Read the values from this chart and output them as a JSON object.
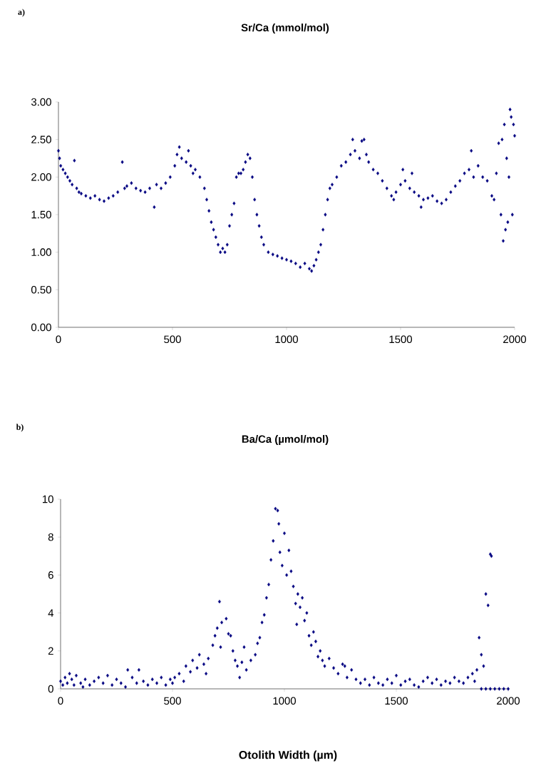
{
  "chart_data": [
    {
      "type": "scatter",
      "title": "Sr/Ca (mmol/mol)",
      "annotations": [
        "a)"
      ],
      "marker": "diamond",
      "xlim": [
        0,
        2000
      ],
      "ylim": [
        0,
        3
      ],
      "xticks": [
        0,
        500,
        1000,
        1500,
        2000
      ],
      "yticks": [
        {
          "value": 0,
          "label": "0.00"
        },
        {
          "value": 0.5,
          "label": "0.50"
        },
        {
          "value": 1,
          "label": "1.00"
        },
        {
          "value": 1.5,
          "label": "1.50"
        },
        {
          "value": 2,
          "label": "2.00"
        },
        {
          "value": 2.5,
          "label": "2.50"
        },
        {
          "value": 3,
          "label": "3.00"
        }
      ],
      "series": [
        {
          "color": "#000080",
          "x": [
            0,
            5,
            10,
            20,
            30,
            40,
            50,
            60,
            70,
            80,
            90,
            100,
            120,
            140,
            160,
            180,
            200,
            220,
            240,
            260,
            280,
            290,
            300,
            320,
            340,
            360,
            380,
            400,
            420,
            430,
            450,
            470,
            490,
            510,
            520,
            530,
            540,
            560,
            570,
            580,
            590,
            600,
            620,
            640,
            650,
            660,
            670,
            680,
            690,
            700,
            710,
            720,
            730,
            740,
            750,
            760,
            770,
            780,
            790,
            800,
            810,
            820,
            830,
            840,
            850,
            860,
            870,
            880,
            890,
            900,
            920,
            940,
            960,
            980,
            1000,
            1020,
            1040,
            1060,
            1080,
            1100,
            1110,
            1120,
            1130,
            1140,
            1150,
            1160,
            1170,
            1180,
            1190,
            1200,
            1220,
            1240,
            1260,
            1280,
            1290,
            1300,
            1320,
            1330,
            1340,
            1350,
            1360,
            1380,
            1400,
            1420,
            1440,
            1460,
            1470,
            1480,
            1500,
            1510,
            1520,
            1540,
            1550,
            1560,
            1580,
            1590,
            1600,
            1620,
            1640,
            1660,
            1680,
            1700,
            1720,
            1740,
            1760,
            1780,
            1800,
            1810,
            1820,
            1840,
            1860,
            1880,
            1900,
            1910,
            1920,
            1930,
            1940,
            1945,
            1950,
            1955,
            1960,
            1965,
            1970,
            1975,
            1980,
            1985,
            1990,
            1995,
            2000
          ],
          "values": [
            2.35,
            2.25,
            2.15,
            2.1,
            2.05,
            2.0,
            1.95,
            1.9,
            2.22,
            1.85,
            1.8,
            1.78,
            1.75,
            1.72,
            1.75,
            1.7,
            1.68,
            1.72,
            1.75,
            1.8,
            2.2,
            1.85,
            1.88,
            1.92,
            1.85,
            1.82,
            1.8,
            1.85,
            1.6,
            1.9,
            1.85,
            1.92,
            2.0,
            2.15,
            2.3,
            2.4,
            2.25,
            2.2,
            2.35,
            2.15,
            2.05,
            2.1,
            2.0,
            1.85,
            1.7,
            1.55,
            1.4,
            1.3,
            1.2,
            1.1,
            1.0,
            1.05,
            1.0,
            1.1,
            1.35,
            1.5,
            1.65,
            2.0,
            2.05,
            2.05,
            2.1,
            2.2,
            2.3,
            2.25,
            2.0,
            1.7,
            1.5,
            1.35,
            1.2,
            1.1,
            1.0,
            0.97,
            0.95,
            0.92,
            0.9,
            0.88,
            0.85,
            0.8,
            0.85,
            0.78,
            0.75,
            0.82,
            0.9,
            1.0,
            1.1,
            1.3,
            1.5,
            1.7,
            1.85,
            1.9,
            2.0,
            2.15,
            2.2,
            2.3,
            2.5,
            2.35,
            2.25,
            2.48,
            2.5,
            2.3,
            2.2,
            2.1,
            2.05,
            1.95,
            1.85,
            1.75,
            1.7,
            1.8,
            1.9,
            2.1,
            1.95,
            1.85,
            2.05,
            1.8,
            1.75,
            1.6,
            1.7,
            1.72,
            1.75,
            1.68,
            1.65,
            1.7,
            1.8,
            1.88,
            1.95,
            2.05,
            2.1,
            2.35,
            2.0,
            2.15,
            2.0,
            1.95,
            1.75,
            1.7,
            2.05,
            2.45,
            1.5,
            2.5,
            1.15,
            2.7,
            1.3,
            2.25,
            1.4,
            2.0,
            2.9,
            2.8,
            1.5,
            2.7,
            2.55
          ]
        }
      ]
    },
    {
      "type": "scatter",
      "title": "Ba/Ca (µmol/mol)",
      "xlabel": "Otolith Width (µm)",
      "annotations": [
        "b)"
      ],
      "marker": "diamond",
      "xlim": [
        0,
        2000
      ],
      "ylim": [
        0,
        10
      ],
      "xticks": [
        0,
        500,
        1000,
        1500,
        2000
      ],
      "yticks": [
        0,
        2,
        4,
        6,
        8,
        10
      ],
      "series": [
        {
          "color": "#000080",
          "x": [
            0,
            10,
            20,
            30,
            40,
            50,
            60,
            70,
            90,
            100,
            110,
            130,
            150,
            170,
            190,
            210,
            230,
            250,
            270,
            290,
            300,
            320,
            340,
            350,
            370,
            390,
            410,
            430,
            450,
            470,
            490,
            500,
            510,
            530,
            550,
            560,
            580,
            590,
            610,
            620,
            640,
            650,
            660,
            680,
            690,
            700,
            710,
            715,
            720,
            740,
            750,
            760,
            770,
            780,
            790,
            800,
            810,
            820,
            830,
            850,
            870,
            880,
            890,
            900,
            910,
            920,
            930,
            940,
            950,
            960,
            970,
            975,
            980,
            990,
            1000,
            1010,
            1020,
            1030,
            1040,
            1050,
            1055,
            1060,
            1070,
            1080,
            1090,
            1100,
            1110,
            1120,
            1130,
            1140,
            1150,
            1160,
            1170,
            1180,
            1200,
            1220,
            1240,
            1260,
            1270,
            1280,
            1300,
            1320,
            1340,
            1360,
            1380,
            1400,
            1420,
            1440,
            1460,
            1480,
            1500,
            1520,
            1540,
            1560,
            1580,
            1600,
            1620,
            1640,
            1660,
            1680,
            1700,
            1720,
            1740,
            1760,
            1780,
            1800,
            1820,
            1840,
            1850,
            1860,
            1870,
            1880,
            1890,
            1900,
            1910,
            1920,
            1925,
            1880,
            1900,
            1920,
            1940,
            1960,
            1980,
            2000
          ],
          "values": [
            0.4,
            0.2,
            0.6,
            0.3,
            0.8,
            0.5,
            0.2,
            0.7,
            0.3,
            0.1,
            0.5,
            0.2,
            0.4,
            0.6,
            0.3,
            0.7,
            0.2,
            0.5,
            0.3,
            0.1,
            1.0,
            0.6,
            0.3,
            1.0,
            0.4,
            0.2,
            0.5,
            0.3,
            0.6,
            0.2,
            0.5,
            0.3,
            0.6,
            0.8,
            0.4,
            1.2,
            0.9,
            1.5,
            1.1,
            1.8,
            1.3,
            0.8,
            1.6,
            2.3,
            2.8,
            3.2,
            4.6,
            2.2,
            3.5,
            3.7,
            2.9,
            2.8,
            2.0,
            1.5,
            1.2,
            0.6,
            1.4,
            2.2,
            1.0,
            1.5,
            1.8,
            2.4,
            2.7,
            3.5,
            3.9,
            4.8,
            5.5,
            6.8,
            7.8,
            9.5,
            9.4,
            8.7,
            7.2,
            6.5,
            8.2,
            6.0,
            7.3,
            6.2,
            5.4,
            4.5,
            3.4,
            5.0,
            4.3,
            4.8,
            3.6,
            4.0,
            2.8,
            2.3,
            3.0,
            2.5,
            1.7,
            2.0,
            1.5,
            1.2,
            1.6,
            1.1,
            0.8,
            1.3,
            1.2,
            0.6,
            1.0,
            0.5,
            0.3,
            0.5,
            0.2,
            0.6,
            0.3,
            0.2,
            0.5,
            0.3,
            0.7,
            0.2,
            0.4,
            0.5,
            0.2,
            0.1,
            0.4,
            0.6,
            0.3,
            0.5,
            0.2,
            0.4,
            0.3,
            0.6,
            0.4,
            0.3,
            0.6,
            0.8,
            0.4,
            1.0,
            2.7,
            1.8,
            1.2,
            5.0,
            4.4,
            7.1,
            7.0,
            0,
            0,
            0,
            0,
            0,
            0,
            0
          ]
        }
      ]
    }
  ]
}
